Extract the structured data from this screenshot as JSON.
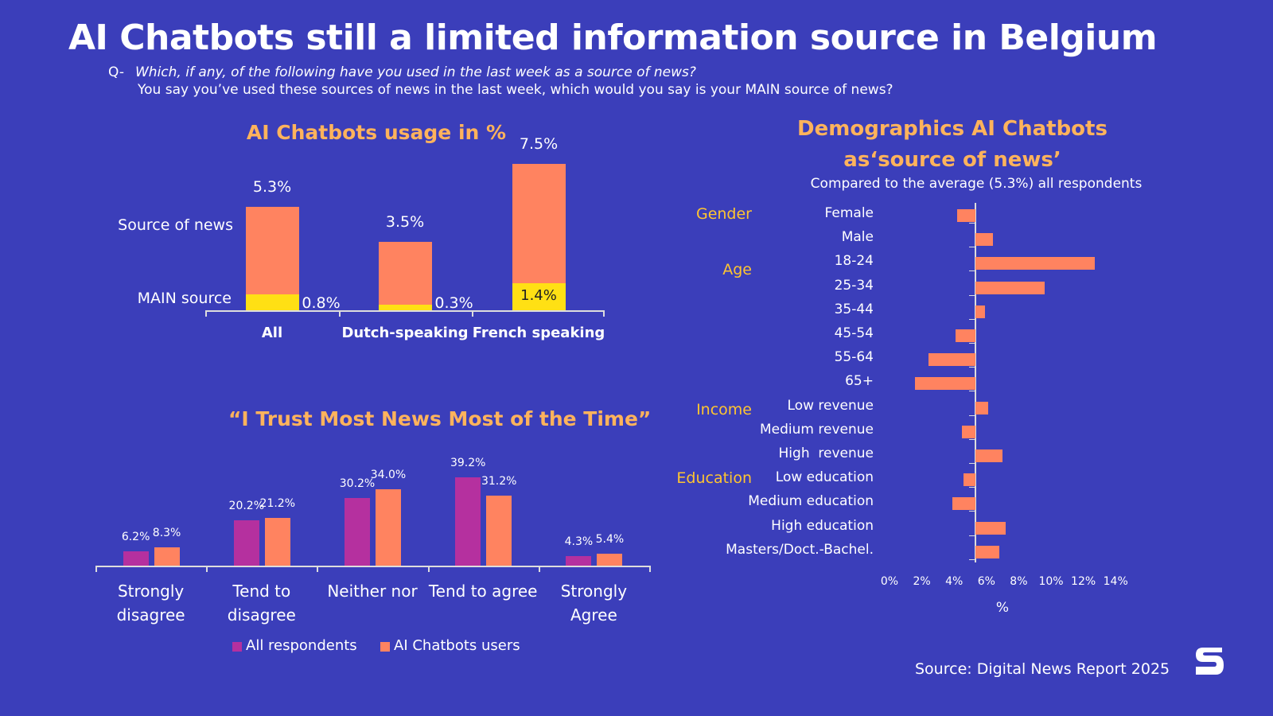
{
  "title": "AI Chatbots still a limited information source in Belgium",
  "question": {
    "prefix": "Q-",
    "line1": "Which, if any, of the following have you used in the last week as a source of news?",
    "line2": "You say you’ve used these sources of news in the last week, which would you say is your MAIN source of news?"
  },
  "source": "Source: Digital News Report 2025",
  "chart_data": [
    {
      "type": "overlaid_bar",
      "title": "AI Chatbots usage in %",
      "categories": [
        "All",
        "Dutch-speaking",
        "French speaking"
      ],
      "series": [
        {
          "name": "Source of news",
          "color": "#ff8360",
          "values": [
            5.3,
            3.5,
            7.5
          ],
          "value_labels": [
            "5.3%",
            "3.5%",
            "7.5%"
          ]
        },
        {
          "name": "MAIN source",
          "color": "#ffe014",
          "values": [
            0.8,
            0.3,
            1.4
          ],
          "value_labels": [
            "0.8%",
            "0.3%",
            "1.4%"
          ]
        }
      ]
    },
    {
      "type": "grouped_bar",
      "title": "“I Trust Most News Most of the Time”",
      "categories": [
        "Strongly\ndisagree",
        "Tend to\ndisagree",
        "Neither nor",
        "Tend to agree",
        "Strongly\nAgree"
      ],
      "series": [
        {
          "name": "All respondents",
          "color": "#b5309f",
          "values": [
            6.2,
            20.2,
            30.2,
            39.2,
            4.3
          ],
          "value_labels": [
            "6.2%",
            "20.2%",
            "30.2%",
            "39.2%",
            "4.3%"
          ]
        },
        {
          "name": "AI Chatbots users",
          "color": "#ff8360",
          "values": [
            8.3,
            21.2,
            34.0,
            31.2,
            5.4
          ],
          "value_labels": [
            "8.3%",
            "21.2%",
            "34.0%",
            "31.2%",
            "5.4%"
          ]
        }
      ]
    },
    {
      "type": "diverging_hbar",
      "title": "Demographics AI Chatbots\nas‘source of news’",
      "subtitle": "Compared to the average (5.3%) all respondents",
      "baseline": 5.3,
      "color": "#ff8360",
      "xlabel": "%",
      "xlim": [
        0,
        14
      ],
      "xticks": [
        {
          "value": 0,
          "label": "0%"
        },
        {
          "value": 2,
          "label": "2%"
        },
        {
          "value": 4,
          "label": "4%"
        },
        {
          "value": 6,
          "label": "6%"
        },
        {
          "value": 8,
          "label": "8%"
        },
        {
          "value": 10,
          "label": "10%"
        },
        {
          "value": 12,
          "label": "12%"
        },
        {
          "value": 14,
          "label": "14%"
        }
      ],
      "groups": [
        {
          "name": "Gender",
          "categories": [
            "Female",
            "Male"
          ],
          "values": [
            4.2,
            6.4
          ]
        },
        {
          "name": "Age",
          "categories": [
            "18-24",
            "25-34",
            "35-44",
            "45-54",
            "55-64",
            "65+"
          ],
          "values": [
            12.7,
            9.6,
            5.9,
            4.1,
            2.4,
            1.6
          ]
        },
        {
          "name": "Income",
          "categories": [
            "Low revenue",
            "Medium revenue",
            "High  revenue"
          ],
          "values": [
            6.1,
            4.5,
            7.0
          ]
        },
        {
          "name": "Education",
          "categories": [
            "Low education",
            "Medium education",
            "High education",
            "Masters/Doct.-Bachel."
          ],
          "values": [
            4.6,
            3.9,
            7.2,
            6.8
          ]
        }
      ]
    }
  ]
}
